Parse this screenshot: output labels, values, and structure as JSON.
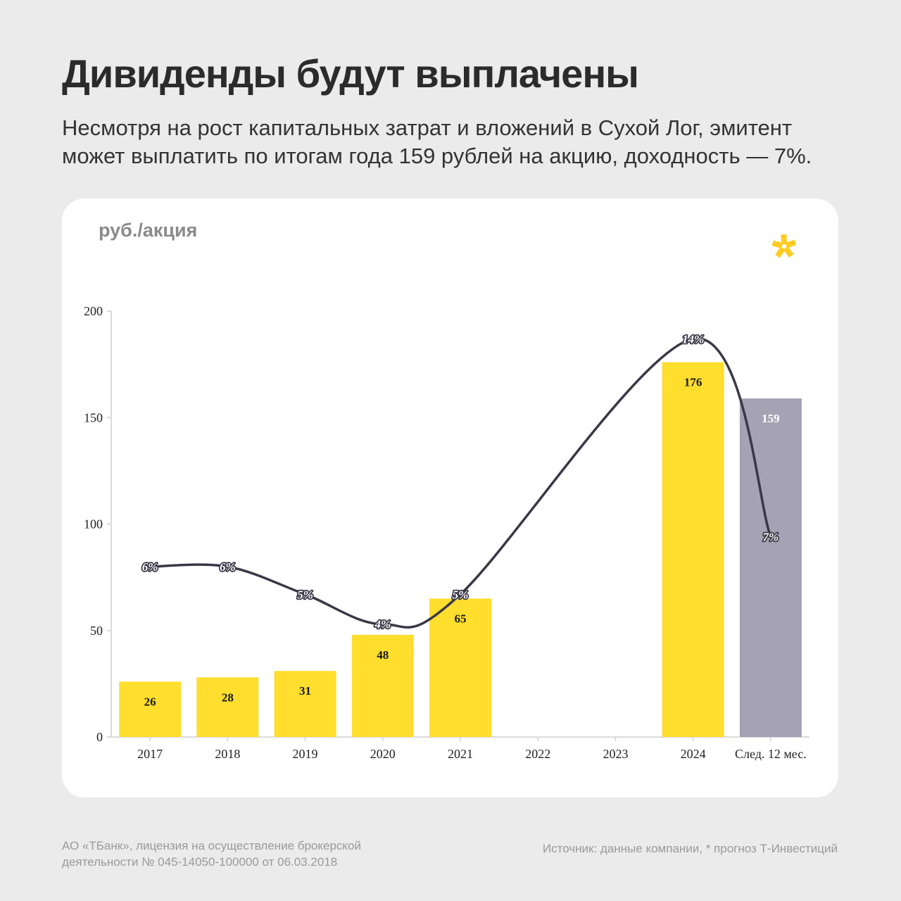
{
  "header": {
    "title": "Дивиденды будут выплачены",
    "subtitle": "Несмотря на рост капитальных затрат и вложений в Сухой Лог, эмитент может выплатить по итогам года 159 рублей на акцию, доходность — 7%."
  },
  "logo": {
    "icon": "star-sparkle-logo-icon",
    "color": "#ffcc22"
  },
  "chart_data": {
    "type": "bar",
    "ylabel": "руб./акция",
    "ylim": [
      0,
      200
    ],
    "yticks": [
      0,
      50,
      100,
      150,
      200
    ],
    "categories": [
      "2017",
      "2018",
      "2019",
      "2020",
      "2021",
      "2022",
      "2023",
      "2024",
      "След. 12 мес."
    ],
    "values": [
      26,
      28,
      31,
      48,
      65,
      null,
      null,
      176,
      159
    ],
    "value_labels": [
      "26",
      "28",
      "31",
      "48",
      "65",
      "",
      "",
      "176",
      "159"
    ],
    "bar_colors": [
      "#ffde2d",
      "#ffde2d",
      "#ffde2d",
      "#ffde2d",
      "#ffde2d",
      "#ffde2d",
      "#ffde2d",
      "#ffde2d",
      "#a4a2b3"
    ],
    "yield_line": {
      "labels": [
        "6%",
        "6%",
        "5%",
        "4%",
        "5%",
        "",
        "",
        "14%",
        "7%"
      ],
      "positions": [
        80,
        80,
        67,
        53,
        67,
        null,
        null,
        187,
        94
      ],
      "color": "#3a3846"
    }
  },
  "footer": {
    "disclaimer_line1": "АО «ТБанк», лицензия на осуществление брокерской",
    "disclaimer_line2": "деятельности № 045-14050-100000 от 06.03.2018",
    "source": "Источник: данные компании, * прогноз Т-Инвестиций"
  }
}
